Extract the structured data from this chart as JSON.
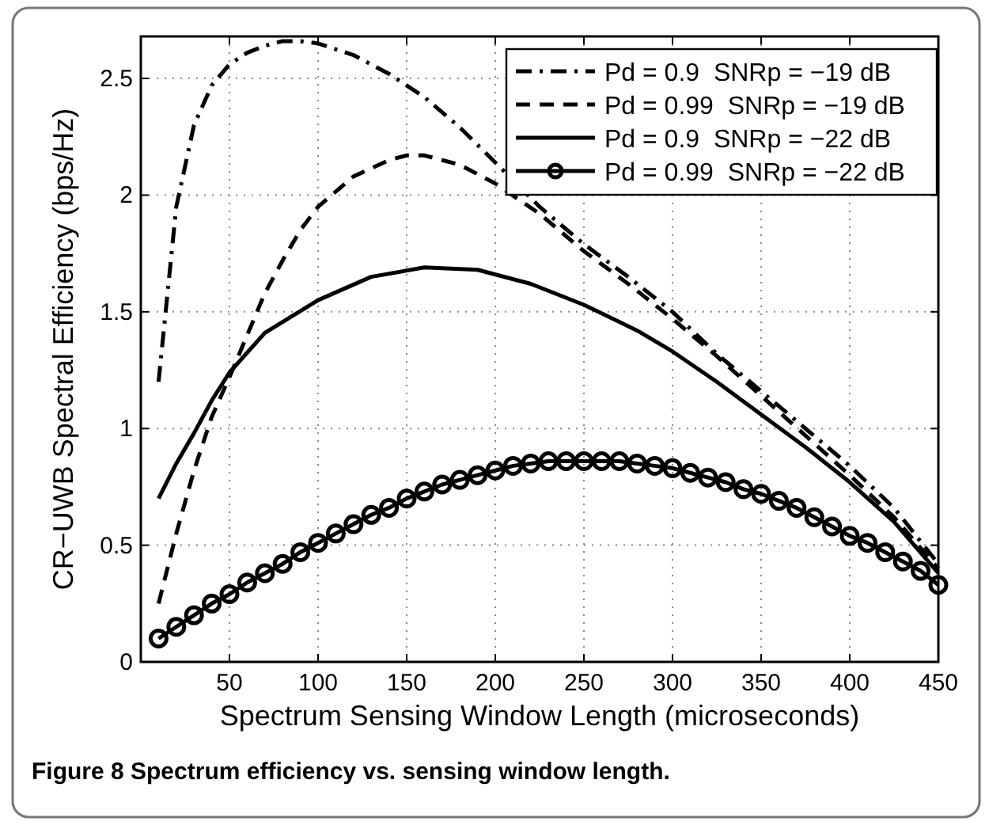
{
  "chart_data": {
    "type": "line",
    "xlabel": "Spectrum Sensing Window Length (microseconds)",
    "ylabel": "CR−UWB Spectral Efficiency (bps/Hz)",
    "annotations": [
      "Figure 8 Spectrum efficiency vs. sensing window length."
    ],
    "xlim": [
      0,
      450
    ],
    "xticks": [
      50,
      100,
      150,
      200,
      250,
      300,
      350,
      400,
      450
    ],
    "ylim": [
      0,
      2.68
    ],
    "yticks": [
      0,
      {
        "value": 0.5,
        "label": "0.5"
      },
      1,
      {
        "value": 1.5,
        "label": "1.5"
      },
      2,
      {
        "value": 2.5,
        "label": "2.5"
      }
    ],
    "grid": true,
    "legend": "top right",
    "series": [
      {
        "name": "Pd = 0.9  SNRp = −19 dB",
        "color": "#000000",
        "line_style": "dashdot",
        "x": [
          10,
          20,
          30,
          40,
          50,
          60,
          70,
          80,
          90,
          100,
          120,
          140,
          160,
          180,
          200,
          225,
          250,
          275,
          300,
          325,
          350,
          375,
          400,
          425,
          450
        ],
        "values": [
          1.2,
          1.95,
          2.3,
          2.47,
          2.56,
          2.61,
          2.64,
          2.66,
          2.66,
          2.65,
          2.6,
          2.52,
          2.42,
          2.29,
          2.14,
          1.95,
          1.79,
          1.65,
          1.5,
          1.32,
          1.16,
          1.0,
          0.84,
          0.66,
          0.42
        ]
      },
      {
        "name": "Pd = 0.99  SNRp = −19 dB",
        "color": "#000000",
        "line_style": "dashed",
        "x": [
          10,
          20,
          30,
          40,
          50,
          60,
          70,
          80,
          90,
          100,
          120,
          140,
          150,
          160,
          180,
          200,
          225,
          250,
          275,
          300,
          325,
          350,
          375,
          400,
          425,
          450
        ],
        "values": [
          0.25,
          0.55,
          0.82,
          1.05,
          1.22,
          1.4,
          1.58,
          1.72,
          1.85,
          1.95,
          2.08,
          2.15,
          2.17,
          2.17,
          2.13,
          2.05,
          1.92,
          1.76,
          1.62,
          1.47,
          1.31,
          1.14,
          0.97,
          0.8,
          0.62,
          0.4
        ]
      },
      {
        "name": "Pd = 0.9  SNRp = −22 dB",
        "color": "#000000",
        "line_style": "solid",
        "x": [
          10,
          20,
          30,
          40,
          50,
          70,
          100,
          130,
          160,
          190,
          220,
          250,
          280,
          300,
          325,
          350,
          375,
          400,
          425,
          450
        ],
        "values": [
          0.7,
          0.85,
          0.98,
          1.12,
          1.24,
          1.41,
          1.55,
          1.65,
          1.69,
          1.68,
          1.62,
          1.53,
          1.42,
          1.33,
          1.2,
          1.06,
          0.92,
          0.77,
          0.6,
          0.38
        ]
      },
      {
        "name": "Pd = 0.99  SNRp = −22 dB",
        "color": "#000000",
        "line_style": "solid",
        "marker": "circle",
        "x": [
          10,
          20,
          30,
          40,
          50,
          60,
          70,
          80,
          90,
          100,
          110,
          120,
          130,
          140,
          150,
          160,
          170,
          180,
          190,
          200,
          210,
          220,
          230,
          240,
          250,
          260,
          270,
          280,
          290,
          300,
          310,
          320,
          330,
          340,
          350,
          360,
          370,
          380,
          390,
          400,
          410,
          420,
          430,
          440,
          450
        ],
        "values": [
          0.1,
          0.15,
          0.2,
          0.25,
          0.29,
          0.34,
          0.38,
          0.42,
          0.47,
          0.51,
          0.55,
          0.59,
          0.63,
          0.66,
          0.7,
          0.73,
          0.76,
          0.78,
          0.8,
          0.82,
          0.84,
          0.85,
          0.86,
          0.86,
          0.86,
          0.86,
          0.86,
          0.85,
          0.84,
          0.83,
          0.81,
          0.79,
          0.77,
          0.74,
          0.72,
          0.69,
          0.66,
          0.62,
          0.58,
          0.54,
          0.51,
          0.47,
          0.43,
          0.39,
          0.33
        ]
      }
    ]
  }
}
